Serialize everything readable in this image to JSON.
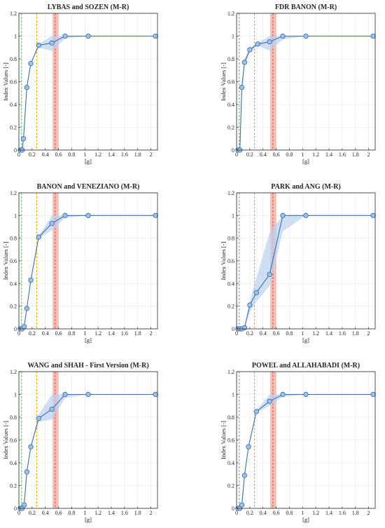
{
  "figure": {
    "colors": {
      "series": "#3a6fb0",
      "marker_fill": "#9fc3e8",
      "band": "#b9d2ef",
      "green_line": "#5cb85c",
      "yellow_line": "#e0b000",
      "red_line": "#d9534f",
      "red_band": "#f2a9a0",
      "grid": "#e6e6e6"
    }
  },
  "chart_data": [
    {
      "type": "line",
      "title": "LYBAS and SOZEN (M-R)",
      "xlabel": "[g]",
      "ylabel": "Index Values [-]",
      "xlim": [
        0,
        2.1
      ],
      "ylim": [
        0,
        1.2
      ],
      "xticks": [
        "0",
        "0.2",
        "0.4",
        "0.6",
        "0.8",
        "1",
        "1.2",
        "1.4",
        "1.6",
        "1.8",
        "2"
      ],
      "yticks": [
        "0",
        "0.2",
        "0.4",
        "0.6",
        "0.8",
        "1",
        "1.2"
      ],
      "grid": true,
      "x": [
        0.02,
        0.05,
        0.07,
        0.12,
        0.18,
        0.3,
        0.5,
        0.7,
        1.05,
        2.07
      ],
      "y": [
        0.0,
        0.0,
        0.1,
        0.55,
        0.76,
        0.92,
        0.94,
        1.0,
        1.0,
        1.0
      ],
      "band_lower": [
        0.0,
        0.0,
        0.1,
        0.55,
        0.76,
        0.9,
        0.87,
        0.98,
        1.0,
        1.0
      ],
      "band_upper": [
        0.0,
        0.0,
        0.1,
        0.55,
        0.76,
        0.93,
        1.0,
        1.0,
        1.0,
        1.0
      ],
      "vlines": {
        "green": 0.04,
        "yellow": 0.27,
        "red": 0.55,
        "red_band": [
          0.51,
          0.6
        ]
      }
    },
    {
      "type": "line",
      "title": "FDR BANON (M-R)",
      "xlabel": "[g]",
      "ylabel": "Index Values [-]",
      "xlim": [
        0,
        2.1
      ],
      "ylim": [
        0,
        1.2
      ],
      "xticks": [
        "0",
        "0.2",
        "0.4",
        "0.6",
        "0.8",
        "1",
        "1.2",
        "1.4",
        "1.6",
        "1.8",
        "2"
      ],
      "yticks": [
        "0",
        "0.2",
        "0.4",
        "0.6",
        "0.8",
        "1",
        "1.2"
      ],
      "grid": true,
      "x": [
        0.02,
        0.05,
        0.08,
        0.12,
        0.2,
        0.32,
        0.5,
        0.7,
        1.05,
        2.07
      ],
      "y": [
        0.0,
        0.0,
        0.55,
        0.77,
        0.88,
        0.93,
        0.95,
        1.0,
        1.0,
        1.0
      ],
      "band_lower": [
        0.0,
        0.0,
        0.5,
        0.74,
        0.86,
        0.92,
        0.87,
        0.97,
        1.0,
        1.0
      ],
      "band_upper": [
        0.0,
        0.0,
        0.6,
        0.8,
        0.9,
        0.94,
        1.0,
        1.0,
        1.0,
        1.0
      ],
      "vlines": {
        "green": 0.04,
        "yellow": 0.27,
        "red": 0.55,
        "red_band": [
          0.51,
          0.6
        ]
      }
    },
    {
      "type": "line",
      "title": "BANON and VENEZIANO (M-R)",
      "xlabel": "[g]",
      "ylabel": "Index Values [-]",
      "xlim": [
        0,
        2.1
      ],
      "ylim": [
        0,
        1.2
      ],
      "xticks": [
        "0",
        "0.2",
        "0.4",
        "0.6",
        "0.8",
        "1",
        "1.2",
        "1.4",
        "1.6",
        "1.8",
        "2"
      ],
      "yticks": [
        "0",
        "0.2",
        "0.4",
        "0.6",
        "0.8",
        "1",
        "1.2"
      ],
      "grid": true,
      "x": [
        0.02,
        0.05,
        0.08,
        0.12,
        0.18,
        0.3,
        0.5,
        0.7,
        1.05,
        2.07
      ],
      "y": [
        0.0,
        0.0,
        0.02,
        0.18,
        0.43,
        0.81,
        0.93,
        1.0,
        1.0,
        1.0
      ],
      "band_lower": [
        0.0,
        0.0,
        0.02,
        0.18,
        0.43,
        0.8,
        0.87,
        0.98,
        1.0,
        1.0
      ],
      "band_upper": [
        0.0,
        0.0,
        0.02,
        0.18,
        0.43,
        0.82,
        1.0,
        1.0,
        1.0,
        1.0
      ],
      "vlines": {
        "green": 0.04,
        "yellow": 0.27,
        "red": 0.55,
        "red_band": [
          0.51,
          0.6
        ]
      }
    },
    {
      "type": "line",
      "title": "PARK and ANG (M-R)",
      "xlabel": "[g]",
      "ylabel": "Index Values [-]",
      "xlim": [
        0,
        2.1
      ],
      "ylim": [
        0,
        1.2
      ],
      "xticks": [
        "0",
        "0.2",
        "0.4",
        "0.6",
        "0.8",
        "1",
        "1.2",
        "1.4",
        "1.6",
        "1.8",
        "2"
      ],
      "yticks": [
        "0",
        "0.2",
        "0.4",
        "0.6",
        "0.8",
        "1",
        "1.2"
      ],
      "grid": true,
      "x": [
        0.02,
        0.05,
        0.08,
        0.12,
        0.2,
        0.3,
        0.5,
        0.7,
        1.05,
        2.07
      ],
      "y": [
        0.0,
        0.0,
        0.0,
        0.01,
        0.21,
        0.32,
        0.48,
        1.0,
        1.0,
        1.0
      ],
      "band_lower": [
        0.0,
        0.0,
        0.0,
        0.01,
        0.15,
        0.24,
        0.38,
        0.86,
        1.0,
        1.0
      ],
      "band_upper": [
        0.0,
        0.0,
        0.0,
        0.01,
        0.25,
        0.45,
        0.85,
        1.0,
        1.0,
        1.0
      ],
      "vlines": {
        "green": 0.04,
        "yellow": 0.27,
        "red": 0.55,
        "red_band": [
          0.51,
          0.6
        ]
      }
    },
    {
      "type": "line",
      "title": "WANG and SHAH - First Version (M-R)",
      "xlabel": "[g]",
      "ylabel": "Index Values [-]",
      "xlim": [
        0,
        2.1
      ],
      "ylim": [
        0,
        1.2
      ],
      "xticks": [
        "0",
        "0.2",
        "0.4",
        "0.6",
        "0.8",
        "1",
        "1.2",
        "1.4",
        "1.6",
        "1.8",
        "2"
      ],
      "yticks": [
        "0",
        "0.2",
        "0.4",
        "0.6",
        "0.8",
        "1",
        "1.2"
      ],
      "grid": true,
      "x": [
        0.02,
        0.05,
        0.08,
        0.12,
        0.18,
        0.3,
        0.5,
        0.7,
        1.05,
        2.07
      ],
      "y": [
        0.0,
        0.0,
        0.03,
        0.32,
        0.54,
        0.79,
        0.87,
        1.0,
        1.0,
        1.0
      ],
      "band_lower": [
        0.0,
        0.0,
        0.03,
        0.32,
        0.54,
        0.76,
        0.78,
        0.97,
        1.0,
        1.0
      ],
      "band_upper": [
        0.0,
        0.0,
        0.03,
        0.32,
        0.54,
        0.82,
        1.0,
        1.0,
        1.0,
        1.0
      ],
      "vlines": {
        "green": 0.04,
        "yellow": 0.27,
        "red": 0.55,
        "red_band": [
          0.51,
          0.6
        ]
      }
    },
    {
      "type": "line",
      "title": "POWEL and ALLAHABADI (M-R)",
      "xlabel": "[g]",
      "ylabel": "Index Values [-]",
      "xlim": [
        0,
        2.1
      ],
      "ylim": [
        0,
        1.2
      ],
      "xticks": [
        "0",
        "0.2",
        "0.4",
        "0.6",
        "0.8",
        "1",
        "1.2",
        "1.4",
        "1.6",
        "1.8",
        "2"
      ],
      "yticks": [
        "0",
        "0.2",
        "0.4",
        "0.6",
        "0.8",
        "1",
        "1.2"
      ],
      "grid": true,
      "x": [
        0.02,
        0.05,
        0.08,
        0.12,
        0.18,
        0.3,
        0.5,
        0.7,
        1.05,
        2.07
      ],
      "y": [
        0.0,
        0.0,
        0.03,
        0.29,
        0.54,
        0.85,
        0.94,
        1.0,
        1.0,
        1.0
      ],
      "band_lower": [
        0.0,
        0.0,
        0.03,
        0.29,
        0.54,
        0.84,
        0.9,
        0.98,
        1.0,
        1.0
      ],
      "band_upper": [
        0.0,
        0.0,
        0.03,
        0.29,
        0.54,
        0.86,
        1.0,
        1.0,
        1.0,
        1.0
      ],
      "vlines": {
        "green": 0.04,
        "yellow": 0.27,
        "red": 0.55,
        "red_band": [
          0.51,
          0.6
        ]
      }
    }
  ]
}
